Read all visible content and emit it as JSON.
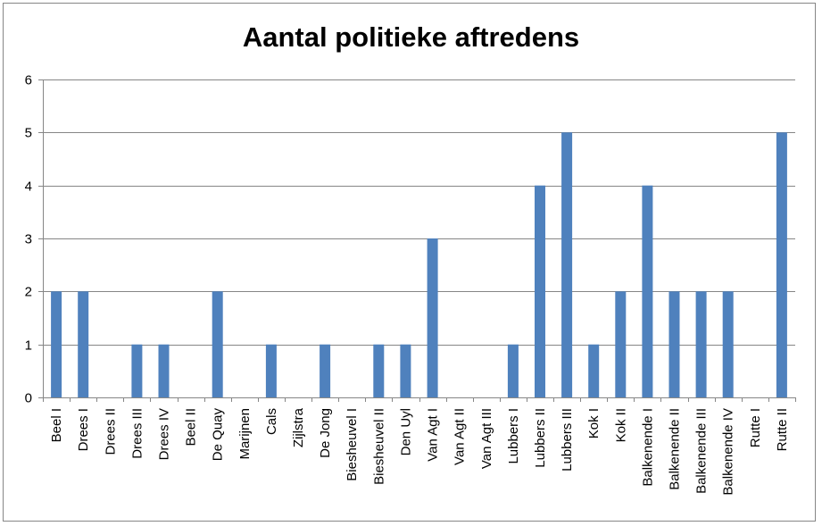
{
  "chart_data": {
    "type": "bar",
    "title": "Aantal politieke aftredens",
    "xlabel": "",
    "ylabel": "",
    "ylim": [
      0,
      6
    ],
    "yticks": [
      0,
      1,
      2,
      3,
      4,
      5,
      6
    ],
    "grid": true,
    "legend": "none",
    "bar_color": "#4f81bd",
    "categories": [
      "Beel I",
      "Drees I",
      "Drees II",
      "Drees III",
      "Drees IV",
      "Beel II",
      "De Quay",
      "Marijnen",
      "Cals",
      "Zijlstra",
      "De Jong",
      "Biesheuvel I",
      "Biesheuvel II",
      "Den Uyl",
      "Van Agt I",
      "Van Agt II",
      "Van Agt III",
      "Lubbers I",
      "Lubbers II",
      "Lubbers III",
      "Kok I",
      "Kok II",
      "Balkenende I",
      "Balkenende II",
      "Balkenende III",
      "Balkenende IV",
      "Rutte I",
      "Rutte II"
    ],
    "values": [
      2,
      2,
      0,
      1,
      1,
      0,
      2,
      0,
      1,
      0,
      1,
      0,
      1,
      1,
      3,
      0,
      0,
      1,
      4,
      5,
      1,
      2,
      4,
      2,
      2,
      2,
      0,
      5
    ]
  }
}
